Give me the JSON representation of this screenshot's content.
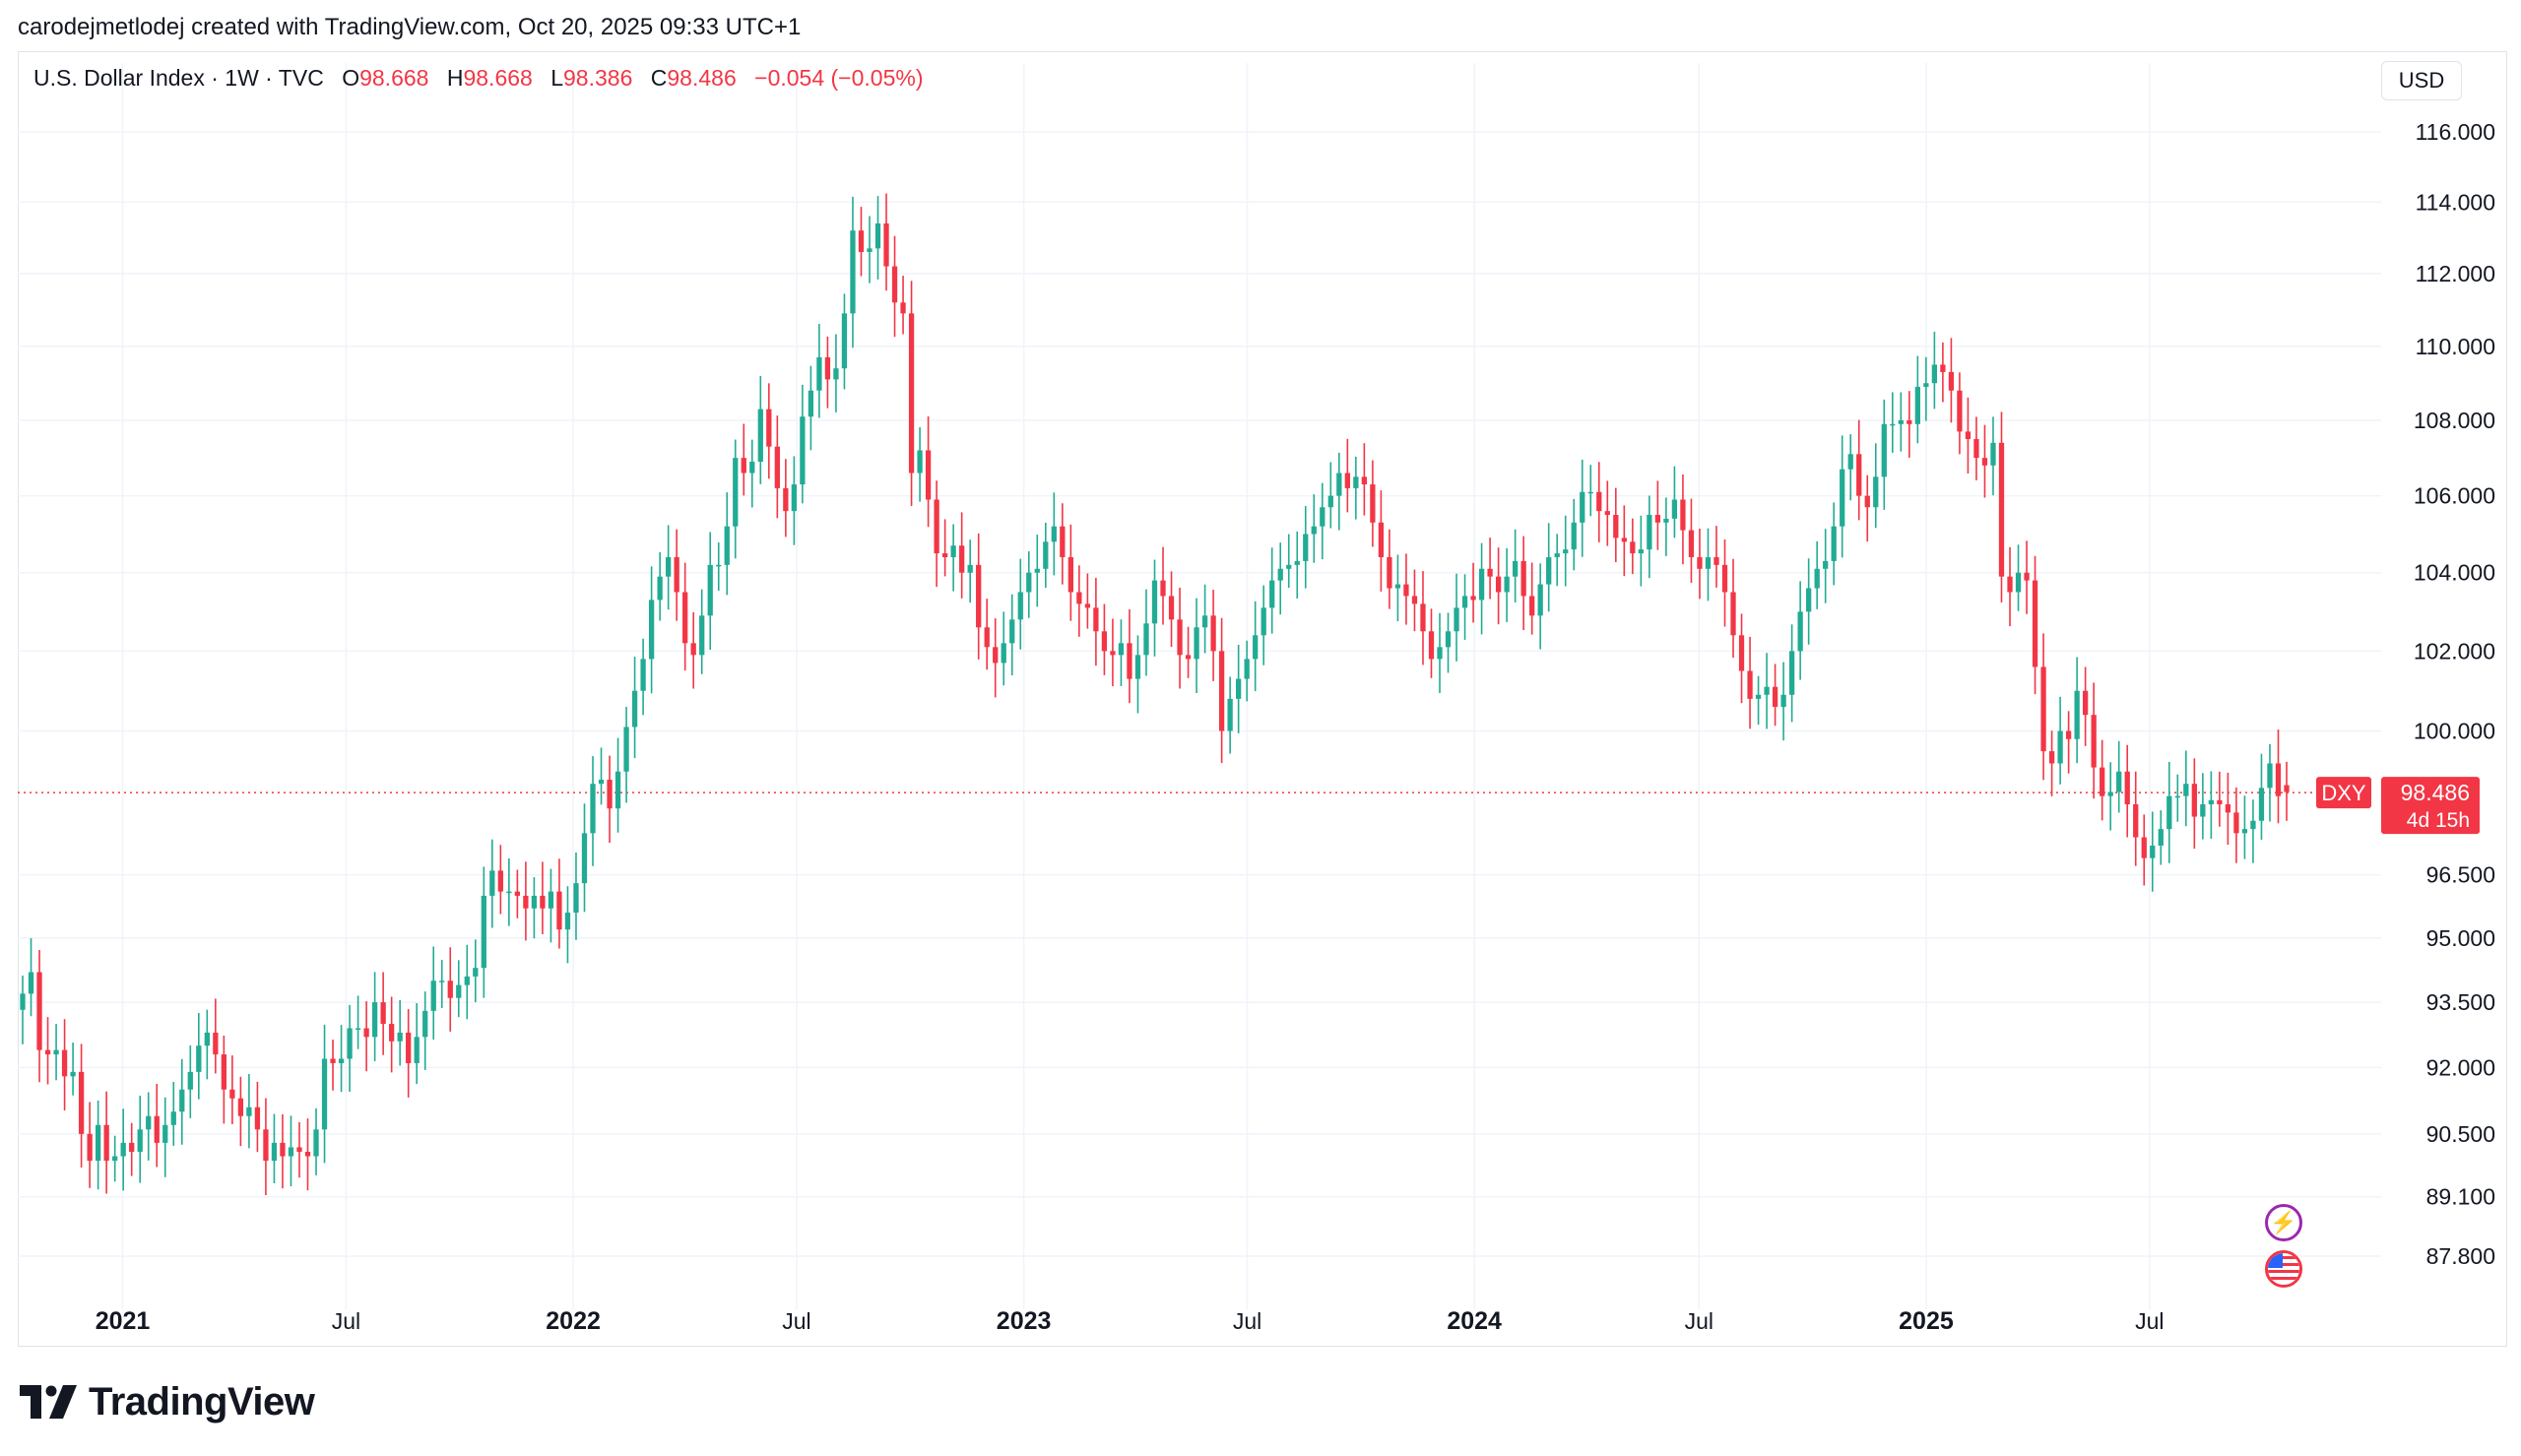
{
  "header": {
    "credit": "carodejmetlodej created with TradingView.com, Oct 20, 2025 09:33 UTC+1"
  },
  "legend": {
    "symbol": "U.S. Dollar Index · 1W · TVC",
    "open_label": "O",
    "open": "98.668",
    "high_label": "H",
    "high": "98.668",
    "low_label": "L",
    "low": "98.386",
    "close_label": "C",
    "close": "98.486",
    "change": "−0.054 (−0.05%)"
  },
  "currency": "USD",
  "price_tag": {
    "ticker": "DXY",
    "price": "98.486",
    "countdown": "4d 15h"
  },
  "branding": {
    "logo_text": "TradingView"
  },
  "icons": {
    "flash": "lightning-icon",
    "flag": "us-flag-icon"
  },
  "colors": {
    "up": "#22ab94",
    "down": "#f23645",
    "grid": "#f0f3fa",
    "text": "#131722"
  },
  "chart_data": {
    "type": "candlestick",
    "interval": "1W",
    "scale": "logarithmic",
    "grid": true,
    "y_axis_ticks": [
      116.0,
      114.0,
      112.0,
      110.0,
      108.0,
      106.0,
      104.0,
      102.0,
      100.0,
      96.5,
      95.0,
      93.5,
      92.0,
      90.5,
      89.1,
      87.8
    ],
    "x_axis_labels": [
      {
        "label": "2021",
        "date": "2021-01-01",
        "bold": true
      },
      {
        "label": "Jul",
        "date": "2021-07-01",
        "bold": false
      },
      {
        "label": "2022",
        "date": "2022-01-01",
        "bold": true
      },
      {
        "label": "Jul",
        "date": "2022-07-01",
        "bold": false
      },
      {
        "label": "2023",
        "date": "2023-01-01",
        "bold": true
      },
      {
        "label": "Jul",
        "date": "2023-07-01",
        "bold": false
      },
      {
        "label": "2024",
        "date": "2024-01-01",
        "bold": true
      },
      {
        "label": "Jul",
        "date": "2024-07-01",
        "bold": false
      },
      {
        "label": "2025",
        "date": "2025-01-01",
        "bold": true
      },
      {
        "label": "Jul",
        "date": "2025-07-01",
        "bold": false
      }
    ],
    "last_price": 98.486,
    "first_week": "2020-10-12",
    "last_week": "2025-10-20",
    "weekly_close": [
      93.7,
      94.2,
      92.4,
      92.3,
      92.4,
      91.8,
      91.9,
      90.5,
      89.9,
      90.7,
      89.9,
      90.0,
      90.3,
      90.1,
      90.6,
      90.9,
      90.3,
      90.7,
      91.0,
      91.5,
      91.9,
      92.5,
      92.8,
      92.3,
      91.5,
      91.3,
      90.9,
      91.1,
      90.6,
      89.9,
      90.3,
      90.0,
      90.2,
      90.1,
      90.0,
      90.6,
      92.2,
      92.1,
      92.2,
      92.9,
      92.9,
      92.7,
      93.5,
      93.0,
      92.6,
      92.8,
      92.1,
      92.7,
      93.3,
      94.0,
      94.0,
      93.6,
      93.9,
      94.1,
      94.3,
      96.0,
      96.6,
      96.1,
      96.1,
      96.0,
      95.7,
      96.0,
      95.7,
      96.1,
      95.2,
      95.6,
      96.3,
      97.5,
      98.7,
      98.8,
      98.1,
      99.0,
      100.1,
      101.0,
      101.8,
      103.3,
      103.9,
      104.4,
      103.5,
      102.2,
      101.9,
      102.9,
      104.2,
      104.2,
      105.2,
      107.0,
      106.6,
      106.9,
      108.3,
      107.3,
      106.2,
      105.6,
      106.3,
      108.1,
      108.8,
      109.7,
      109.1,
      109.4,
      110.9,
      113.2,
      112.6,
      112.7,
      113.4,
      112.2,
      111.2,
      110.9,
      106.6,
      107.2,
      105.9,
      104.5,
      104.4,
      104.7,
      104.0,
      104.2,
      102.6,
      102.1,
      101.7,
      102.2,
      102.8,
      103.5,
      104.0,
      104.1,
      104.8,
      105.2,
      104.4,
      103.5,
      103.2,
      103.1,
      102.5,
      102.0,
      101.9,
      102.2,
      101.3,
      101.9,
      102.7,
      103.8,
      103.4,
      102.8,
      101.9,
      101.8,
      102.6,
      102.9,
      102.0,
      100.0,
      100.8,
      101.3,
      101.8,
      102.4,
      103.1,
      103.8,
      104.1,
      104.2,
      104.3,
      105.0,
      105.2,
      105.7,
      106.0,
      106.6,
      106.2,
      106.5,
      106.3,
      105.3,
      104.4,
      103.6,
      103.7,
      103.4,
      103.2,
      102.5,
      101.8,
      102.1,
      102.5,
      103.1,
      103.4,
      103.3,
      104.1,
      103.9,
      103.5,
      103.9,
      104.3,
      103.4,
      102.9,
      103.7,
      104.4,
      104.5,
      104.6,
      105.3,
      106.1,
      106.1,
      105.6,
      105.5,
      104.9,
      104.8,
      104.5,
      104.6,
      105.5,
      105.3,
      105.4,
      105.9,
      105.1,
      104.4,
      104.1,
      104.4,
      104.2,
      103.5,
      102.4,
      101.5,
      100.8,
      100.9,
      101.1,
      100.6,
      100.9,
      102.0,
      103.0,
      103.6,
      104.1,
      104.3,
      105.2,
      106.7,
      107.1,
      106.0,
      105.7,
      106.5,
      107.9,
      107.9,
      108.0,
      107.9,
      108.9,
      109.0,
      109.5,
      109.3,
      108.8,
      107.7,
      107.5,
      107.0,
      106.8,
      107.4,
      103.9,
      103.5,
      104.0,
      103.8,
      101.6,
      99.5,
      99.2,
      100.0,
      99.8,
      101.0,
      100.4,
      99.1,
      98.4,
      98.5,
      99.0,
      98.2,
      97.4,
      96.9,
      97.2,
      97.6,
      98.4,
      98.4,
      98.7,
      97.9,
      98.2,
      98.3,
      98.2,
      98.0,
      97.5,
      97.6,
      97.8,
      98.6,
      99.2,
      98.4,
      98.5
    ]
  }
}
